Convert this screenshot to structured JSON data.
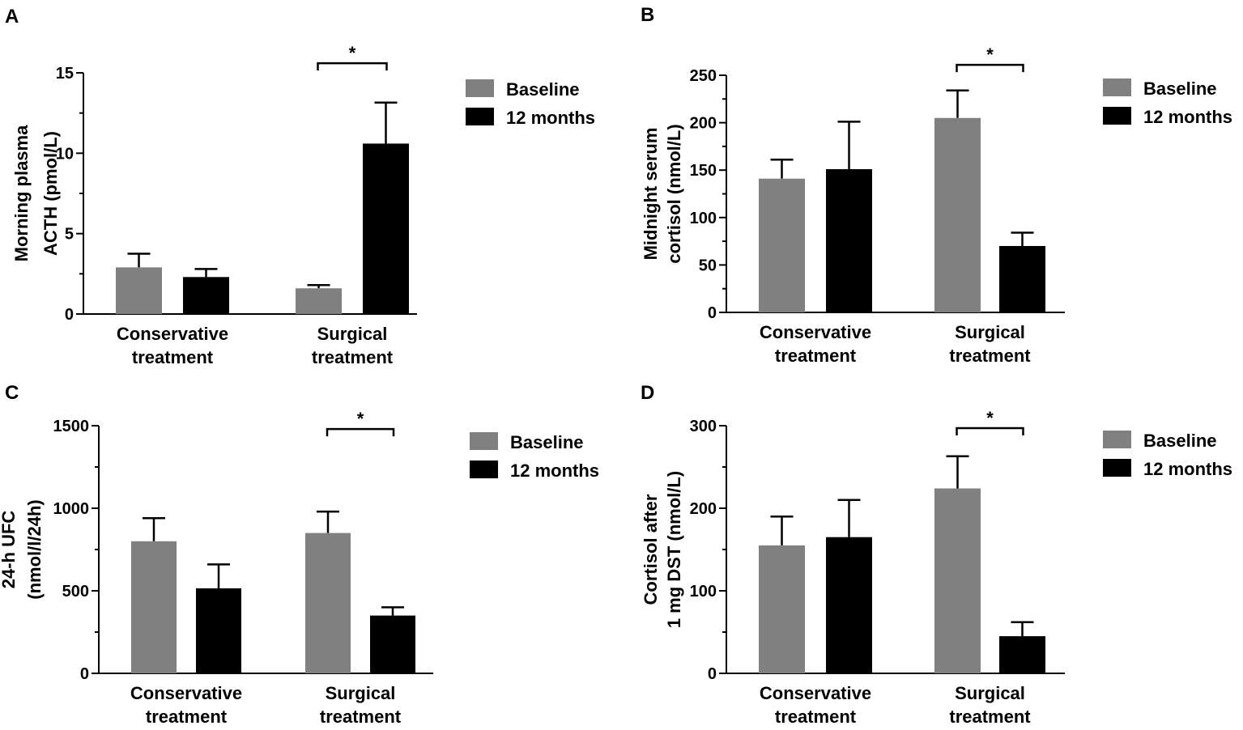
{
  "colors": {
    "baseline": "#808080",
    "months12": "#000000",
    "axis": "#000000"
  },
  "legend": {
    "baseline": "Baseline",
    "months12": "12 months"
  },
  "chart_data": [
    {
      "panel": "A",
      "type": "bar",
      "ylabel": [
        "Morning plasma",
        "ACTH (pmol/L)"
      ],
      "ylim": [
        0,
        15
      ],
      "yticks": [
        0,
        5,
        10,
        15
      ],
      "categories": [
        [
          "Conservative",
          "treatment"
        ],
        [
          "Surgical",
          "treatment"
        ]
      ],
      "series": [
        {
          "name": "Baseline",
          "values": [
            2.9,
            1.6
          ],
          "errors": [
            0.85,
            0.2
          ]
        },
        {
          "name": "12 months",
          "values": [
            2.3,
            10.6
          ],
          "errors": [
            0.5,
            2.55
          ]
        }
      ],
      "significance": {
        "category": 1,
        "label": "*",
        "y": 15.6
      }
    },
    {
      "panel": "B",
      "type": "bar",
      "ylabel": [
        "Midnight serum",
        "cortisol (nmol/L)"
      ],
      "ylim": [
        0,
        250
      ],
      "yticks": [
        0,
        50,
        100,
        150,
        200,
        250
      ],
      "categories": [
        [
          "Conservative",
          "treatment"
        ],
        [
          "Surgical",
          "treatment"
        ]
      ],
      "series": [
        {
          "name": "Baseline",
          "values": [
            141,
            205
          ],
          "errors": [
            20,
            29
          ]
        },
        {
          "name": "12 months",
          "values": [
            151,
            70
          ],
          "errors": [
            50,
            14
          ]
        }
      ],
      "significance": {
        "category": 1,
        "label": "*",
        "y": 261
      }
    },
    {
      "panel": "C",
      "type": "bar",
      "ylabel": [
        "24-h UFC",
        "(nmol/l/24h)"
      ],
      "ylim": [
        0,
        1500
      ],
      "yticks": [
        0,
        500,
        1000,
        1500
      ],
      "categories": [
        [
          "Conservative",
          "treatment"
        ],
        [
          "Surgical",
          "treatment"
        ]
      ],
      "series": [
        {
          "name": "Baseline",
          "values": [
            800,
            850
          ],
          "errors": [
            140,
            130
          ]
        },
        {
          "name": "12 months",
          "values": [
            515,
            350
          ],
          "errors": [
            145,
            50
          ]
        }
      ],
      "significance": {
        "category": 1,
        "label": "*",
        "y": 1480
      }
    },
    {
      "panel": "D",
      "type": "bar",
      "ylabel": [
        "Cortisol after",
        "1 mg DST (nmol/L)"
      ],
      "ylim": [
        0,
        300
      ],
      "yticks": [
        0,
        100,
        200,
        300
      ],
      "categories": [
        [
          "Conservative",
          "treatment"
        ],
        [
          "Surgical",
          "treatment"
        ]
      ],
      "series": [
        {
          "name": "Baseline",
          "values": [
            155,
            224
          ],
          "errors": [
            35,
            39
          ]
        },
        {
          "name": "12 months",
          "values": [
            165,
            45
          ],
          "errors": [
            45,
            17
          ]
        }
      ],
      "significance": {
        "category": 1,
        "label": "*",
        "y": 297
      }
    }
  ]
}
